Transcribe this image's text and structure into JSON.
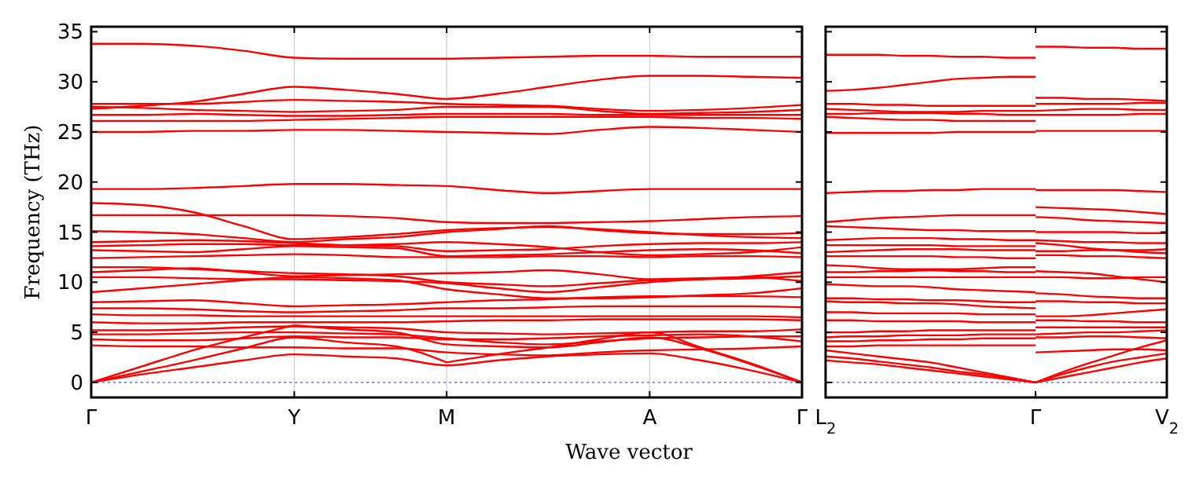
{
  "chart_data": [
    {
      "type": "line",
      "ylabel": "Frequency (THz)",
      "xlabel": "Wave vector",
      "ylim": [
        -1.5,
        35.5
      ],
      "categories": [
        "Γ",
        null,
        null,
        null,
        "Y",
        null,
        null,
        "M",
        null,
        null,
        null,
        "A",
        null,
        null,
        "Γ"
      ],
      "yticks": [
        0,
        5,
        10,
        15,
        20,
        25,
        30,
        35
      ],
      "grid": "x",
      "marker": "none",
      "line_style": "solid",
      "ref_lines": [
        {
          "axis": "y",
          "value": 0,
          "color": "#7f7fff",
          "line_style": "dotted"
        }
      ],
      "series": [
        {
          "color": "#ff0000",
          "values": [
            33.8,
            33.8,
            33.6,
            33.1,
            32.4,
            32.3,
            32.3,
            32.3,
            32.4,
            32.5,
            32.6,
            32.6,
            32.5,
            32.5,
            32.5
          ]
        },
        {
          "color": "#ff0000",
          "values": [
            27.3,
            27.6,
            28.0,
            28.8,
            29.5,
            29.2,
            28.8,
            28.3,
            28.8,
            29.5,
            30.2,
            30.6,
            30.6,
            30.5,
            30.4
          ]
        },
        {
          "color": "#ff0000",
          "values": [
            27.8,
            27.8,
            27.8,
            28.0,
            28.2,
            28.1,
            28.0,
            27.8,
            27.7,
            27.6,
            27.3,
            27.1,
            27.2,
            27.4,
            27.7
          ]
        },
        {
          "color": "#ff0000",
          "values": [
            27.5,
            27.4,
            27.2,
            27.1,
            27.0,
            27.1,
            27.2,
            27.5,
            27.5,
            27.5,
            27.1,
            26.8,
            26.9,
            27.0,
            27.2
          ]
        },
        {
          "color": "#ff0000",
          "values": [
            26.7,
            26.7,
            26.8,
            26.7,
            26.6,
            26.6,
            26.7,
            26.8,
            26.8,
            26.8,
            26.7,
            26.7,
            26.7,
            26.7,
            26.7
          ]
        },
        {
          "color": "#ff0000",
          "values": [
            26.1,
            26.1,
            26.1,
            26.1,
            26.2,
            26.3,
            26.4,
            26.5,
            26.5,
            26.5,
            26.5,
            26.5,
            26.4,
            26.4,
            26.3
          ]
        },
        {
          "color": "#ff0000",
          "values": [
            25.0,
            25.0,
            25.1,
            25.1,
            25.2,
            25.2,
            25.1,
            25.0,
            24.9,
            24.8,
            25.2,
            25.5,
            25.4,
            25.2,
            25.0
          ]
        },
        {
          "color": "#ff0000",
          "values": [
            19.3,
            19.3,
            19.4,
            19.6,
            19.8,
            19.8,
            19.7,
            19.6,
            19.2,
            18.9,
            19.1,
            19.3,
            19.3,
            19.3,
            19.3
          ]
        },
        {
          "color": "#ff0000",
          "values": [
            17.9,
            17.7,
            17.0,
            15.6,
            14.3,
            14.5,
            14.8,
            15.2,
            15.4,
            15.5,
            15.3,
            15.0,
            14.7,
            14.5,
            14.4
          ]
        },
        {
          "color": "#ff0000",
          "values": [
            16.7,
            16.7,
            16.7,
            16.7,
            16.7,
            16.6,
            16.4,
            16.0,
            15.9,
            15.9,
            16.0,
            16.1,
            16.3,
            16.5,
            16.6
          ]
        },
        {
          "color": "#ff0000",
          "values": [
            15.1,
            15.0,
            14.8,
            14.4,
            14.0,
            14.3,
            14.5,
            15.0,
            15.3,
            15.6,
            15.2,
            14.9,
            14.8,
            14.8,
            14.9
          ]
        },
        {
          "color": "#ff0000",
          "values": [
            14.0,
            14.1,
            14.2,
            14.1,
            13.9,
            13.7,
            13.6,
            13.1,
            13.2,
            13.3,
            13.6,
            13.8,
            13.9,
            13.9,
            14.0
          ]
        },
        {
          "color": "#ff0000",
          "values": [
            13.6,
            13.7,
            13.8,
            13.8,
            13.7,
            13.7,
            13.8,
            14.0,
            13.8,
            13.5,
            13.0,
            12.7,
            12.8,
            13.0,
            13.5
          ]
        },
        {
          "color": "#ff0000",
          "values": [
            13.2,
            13.1,
            13.0,
            13.3,
            13.6,
            13.5,
            13.4,
            12.6,
            12.7,
            12.8,
            13.0,
            13.2,
            13.3,
            13.2,
            12.9
          ]
        },
        {
          "color": "#ff0000",
          "values": [
            12.4,
            12.5,
            12.6,
            12.7,
            12.8,
            12.7,
            12.5,
            12.5,
            12.5,
            12.6,
            12.6,
            12.5,
            12.6,
            12.6,
            12.5
          ]
        },
        {
          "color": "#ff0000",
          "values": [
            11.5,
            11.5,
            11.3,
            11.1,
            10.9,
            10.8,
            10.6,
            10.0,
            9.8,
            9.6,
            9.9,
            10.2,
            10.3,
            10.4,
            10.6
          ]
        },
        {
          "color": "#ff0000",
          "values": [
            11.0,
            11.2,
            11.4,
            11.0,
            10.6,
            10.7,
            10.8,
            10.9,
            11.0,
            11.2,
            10.8,
            10.3,
            10.4,
            10.5,
            10.1
          ]
        },
        {
          "color": "#ff0000",
          "values": [
            10.5,
            10.5,
            10.4,
            10.3,
            10.3,
            10.2,
            10.1,
            9.9,
            9.4,
            9.0,
            9.5,
            10.0,
            10.3,
            10.6,
            11.0
          ]
        },
        {
          "color": "#ff0000",
          "values": [
            9.0,
            9.4,
            9.8,
            10.2,
            10.5,
            10.4,
            10.2,
            9.3,
            8.8,
            8.4,
            8.4,
            8.5,
            8.7,
            8.9,
            9.4
          ]
        },
        {
          "color": "#ff0000",
          "values": [
            8.0,
            8.1,
            8.2,
            7.9,
            7.6,
            7.7,
            7.8,
            8.0,
            8.2,
            8.3,
            8.5,
            8.6,
            8.6,
            8.6,
            8.5
          ]
        },
        {
          "color": "#ff0000",
          "values": [
            7.4,
            7.4,
            7.3,
            7.1,
            7.0,
            7.1,
            7.2,
            7.4,
            7.4,
            7.5,
            7.6,
            7.6,
            7.6,
            7.6,
            7.5
          ]
        },
        {
          "color": "#ff0000",
          "values": [
            6.8,
            6.7,
            6.7,
            6.6,
            6.6,
            6.6,
            6.6,
            6.6,
            6.6,
            6.6,
            6.6,
            6.6,
            6.6,
            6.6,
            6.5
          ]
        },
        {
          "color": "#ff0000",
          "values": [
            6.0,
            5.9,
            5.9,
            6.0,
            6.0,
            6.0,
            6.0,
            6.1,
            6.2,
            6.2,
            6.3,
            6.3,
            6.3,
            6.3,
            6.2
          ]
        },
        {
          "color": "#ff0000",
          "values": [
            5.2,
            5.2,
            5.3,
            5.5,
            5.6,
            5.5,
            5.4,
            5.0,
            4.9,
            4.8,
            4.9,
            5.0,
            5.1,
            5.1,
            5.3
          ]
        },
        {
          "color": "#ff0000",
          "values": [
            4.8,
            4.8,
            4.9,
            5.0,
            5.0,
            4.9,
            4.8,
            4.4,
            4.0,
            3.8,
            4.1,
            4.4,
            4.5,
            4.6,
            4.6
          ]
        },
        {
          "color": "#ff0000",
          "values": [
            4.3,
            4.2,
            4.2,
            4.4,
            4.6,
            4.5,
            4.5,
            4.3,
            4.3,
            4.4,
            4.6,
            4.7,
            4.8,
            4.6,
            4.1
          ]
        },
        {
          "color": "#ff0000",
          "values": [
            3.7,
            3.6,
            3.6,
            3.5,
            3.5,
            3.4,
            3.4,
            3.0,
            2.8,
            2.7,
            3.0,
            3.2,
            3.3,
            3.4,
            3.6
          ]
        },
        {
          "color": "#ff0000",
          "values": [
            0,
            1.6,
            3.2,
            4.5,
            5.7,
            null,
            null,
            null,
            null,
            null,
            null,
            null,
            null,
            null,
            null
          ]
        },
        {
          "color": "#ff0000",
          "values": [
            null,
            null,
            null,
            null,
            5.7,
            5.3,
            5.0,
            3.8,
            3.6,
            3.5,
            4.0,
            4.5,
            3.4,
            1.8,
            0
          ]
        },
        {
          "color": "#ff0000",
          "values": [
            0,
            1.1,
            2.2,
            3.4,
            4.5,
            4.0,
            3.6,
            2.0,
            null,
            null,
            null,
            null,
            null,
            null,
            null
          ]
        },
        {
          "color": "#ff0000",
          "values": [
            null,
            null,
            null,
            null,
            null,
            null,
            null,
            2.0,
            2.8,
            3.5,
            4.3,
            5.0,
            3.5,
            1.9,
            0
          ]
        },
        {
          "color": "#ff0000",
          "values": [
            0,
            0.8,
            1.5,
            2.2,
            2.8,
            2.6,
            2.4,
            1.7,
            2.2,
            2.6,
            null,
            null,
            null,
            null,
            null
          ]
        },
        {
          "color": "#ff0000",
          "values": [
            null,
            null,
            null,
            null,
            null,
            null,
            null,
            null,
            null,
            2.6,
            2.8,
            2.9,
            2.2,
            1.2,
            0
          ]
        }
      ]
    },
    {
      "type": "line",
      "ylim": [
        -1.5,
        35.5
      ],
      "categories": [
        "L$_{2}$",
        null,
        null,
        null,
        null,
        null,
        null,
        null,
        "Γ",
        null,
        null,
        null,
        null,
        "V$_{2}$"
      ],
      "yticks": [
        {
          "value": 0,
          "label": null
        },
        {
          "value": 5,
          "label": null
        },
        {
          "value": 10,
          "label": null
        },
        {
          "value": 15,
          "label": null
        },
        {
          "value": 20,
          "label": null
        },
        {
          "value": 25,
          "label": null
        },
        {
          "value": 30,
          "label": null
        },
        {
          "value": 35,
          "label": null
        }
      ],
      "tick_labels": "x",
      "marker": "none",
      "line_style": "solid",
      "ref_lines": [
        {
          "axis": "y",
          "value": 0,
          "color": "#7f7fff",
          "line_style": "dotted"
        }
      ],
      "series": [
        {
          "color": "#ff0000",
          "values": [
            32.7,
            32.7,
            32.7,
            32.6,
            32.6,
            32.5,
            32.5,
            32.4,
            32.4,
            null,
            null,
            null,
            null,
            null
          ]
        },
        {
          "color": "#ff0000",
          "values": [
            29.1,
            29.2,
            29.4,
            29.7,
            30.0,
            30.3,
            30.4,
            30.5,
            30.5,
            null,
            null,
            null,
            null,
            null
          ]
        },
        {
          "color": "#ff0000",
          "values": [
            27.8,
            27.8,
            27.7,
            27.7,
            27.6,
            27.6,
            27.6,
            27.6,
            27.6,
            null,
            null,
            null,
            null,
            null
          ]
        },
        {
          "color": "#ff0000",
          "values": [
            27.3,
            27.2,
            27.1,
            27.0,
            27.0,
            27.0,
            27.1,
            27.1,
            27.1,
            null,
            null,
            null,
            null,
            null
          ]
        },
        {
          "color": "#ff0000",
          "values": [
            26.8,
            26.8,
            26.9,
            26.9,
            26.9,
            26.8,
            26.8,
            26.7,
            26.7,
            null,
            null,
            null,
            null,
            null
          ]
        },
        {
          "color": "#ff0000",
          "values": [
            26.5,
            26.4,
            26.3,
            26.2,
            26.2,
            26.1,
            26.1,
            26.1,
            26.1,
            null,
            null,
            null,
            null,
            null
          ]
        },
        {
          "color": "#ff0000",
          "values": [
            24.9,
            24.9,
            24.9,
            24.9,
            24.9,
            25.0,
            25.0,
            25.0,
            25.0,
            null,
            null,
            null,
            null,
            null
          ]
        },
        {
          "color": "#ff0000",
          "values": [
            18.9,
            19.0,
            19.1,
            19.1,
            19.2,
            19.2,
            19.3,
            19.3,
            19.3,
            null,
            null,
            null,
            null,
            null
          ]
        },
        {
          "color": "#ff0000",
          "values": [
            16.0,
            16.2,
            16.4,
            16.5,
            16.6,
            16.7,
            16.7,
            16.7,
            16.7,
            null,
            null,
            null,
            null,
            null
          ]
        },
        {
          "color": "#ff0000",
          "values": [
            15.6,
            15.5,
            15.4,
            15.3,
            15.2,
            15.2,
            15.1,
            15.1,
            15.1,
            null,
            null,
            null,
            null,
            null
          ]
        },
        {
          "color": "#ff0000",
          "values": [
            14.2,
            14.3,
            14.4,
            14.4,
            14.4,
            14.3,
            14.3,
            14.2,
            14.2,
            null,
            null,
            null,
            null,
            null
          ]
        },
        {
          "color": "#ff0000",
          "values": [
            13.7,
            13.7,
            13.7,
            13.7,
            13.7,
            13.6,
            13.6,
            13.6,
            13.6,
            null,
            null,
            null,
            null,
            null
          ]
        },
        {
          "color": "#ff0000",
          "values": [
            13.0,
            13.1,
            13.2,
            13.3,
            13.3,
            13.3,
            13.2,
            13.2,
            13.2,
            null,
            null,
            null,
            null,
            null
          ]
        },
        {
          "color": "#ff0000",
          "values": [
            12.6,
            12.6,
            12.6,
            12.6,
            12.6,
            12.5,
            12.5,
            12.4,
            12.4,
            null,
            null,
            null,
            null,
            null
          ]
        },
        {
          "color": "#ff0000",
          "values": [
            11.7,
            11.6,
            11.4,
            11.3,
            11.3,
            11.3,
            11.4,
            11.5,
            11.5,
            null,
            null,
            null,
            null,
            null
          ]
        },
        {
          "color": "#ff0000",
          "values": [
            11.0,
            11.0,
            11.1,
            11.1,
            11.2,
            11.1,
            11.1,
            11.0,
            11.0,
            null,
            null,
            null,
            null,
            null
          ]
        },
        {
          "color": "#ff0000",
          "values": [
            10.5,
            10.5,
            10.5,
            10.5,
            10.5,
            10.5,
            10.5,
            10.5,
            10.5,
            null,
            null,
            null,
            null,
            null
          ]
        },
        {
          "color": "#ff0000",
          "values": [
            9.8,
            9.7,
            9.6,
            9.6,
            9.5,
            9.3,
            9.2,
            9.1,
            9.0,
            null,
            null,
            null,
            null,
            null
          ]
        },
        {
          "color": "#ff0000",
          "values": [
            8.4,
            8.4,
            8.3,
            8.3,
            8.2,
            8.2,
            8.1,
            8.0,
            8.0,
            null,
            null,
            null,
            null,
            null
          ]
        },
        {
          "color": "#ff0000",
          "values": [
            8.1,
            8.0,
            8.0,
            7.9,
            7.9,
            7.8,
            7.6,
            7.5,
            7.4,
            null,
            null,
            null,
            null,
            null
          ]
        },
        {
          "color": "#ff0000",
          "values": [
            7.0,
            7.0,
            6.9,
            6.9,
            6.9,
            6.9,
            6.8,
            6.8,
            6.8,
            null,
            null,
            null,
            null,
            null
          ]
        },
        {
          "color": "#ff0000",
          "values": [
            6.2,
            6.2,
            6.1,
            6.1,
            6.1,
            6.1,
            6.0,
            6.0,
            6.0,
            null,
            null,
            null,
            null,
            null
          ]
        },
        {
          "color": "#ff0000",
          "values": [
            5.0,
            5.0,
            5.1,
            5.1,
            5.2,
            5.2,
            5.2,
            5.2,
            5.2,
            null,
            null,
            null,
            null,
            null
          ]
        },
        {
          "color": "#ff0000",
          "values": [
            4.5,
            4.6,
            4.6,
            4.7,
            4.7,
            4.7,
            4.8,
            4.8,
            4.8,
            null,
            null,
            null,
            null,
            null
          ]
        },
        {
          "color": "#ff0000",
          "values": [
            4.1,
            4.1,
            4.2,
            4.2,
            4.3,
            4.3,
            4.4,
            4.4,
            4.4,
            null,
            null,
            null,
            null,
            null
          ]
        },
        {
          "color": "#ff0000",
          "values": [
            3.6,
            3.6,
            3.7,
            3.7,
            3.7,
            3.7,
            3.7,
            3.7,
            3.7,
            null,
            null,
            null,
            null,
            null
          ]
        },
        {
          "color": "#ff0000",
          "values": [
            3.2,
            2.9,
            2.6,
            2.3,
            2.0,
            1.5,
            1.0,
            0.5,
            0,
            null,
            null,
            null,
            null,
            null
          ]
        },
        {
          "color": "#ff0000",
          "values": [
            2.6,
            2.4,
            2.1,
            1.8,
            1.5,
            1.1,
            0.8,
            0.4,
            0,
            null,
            null,
            null,
            null,
            null
          ]
        },
        {
          "color": "#ff0000",
          "values": [
            2.2,
            2.0,
            1.8,
            1.5,
            1.2,
            0.9,
            0.6,
            0.3,
            0,
            null,
            null,
            null,
            null,
            null
          ]
        },
        {
          "color": "#ff0000",
          "values": [
            null,
            null,
            null,
            null,
            null,
            null,
            null,
            null,
            33.5,
            33.5,
            33.4,
            33.4,
            33.3,
            33.3
          ]
        },
        {
          "color": "#ff0000",
          "values": [
            null,
            null,
            null,
            null,
            null,
            null,
            null,
            null,
            28.4,
            28.4,
            28.3,
            28.3,
            28.2,
            28.1
          ]
        },
        {
          "color": "#ff0000",
          "values": [
            null,
            null,
            null,
            null,
            null,
            null,
            null,
            null,
            27.8,
            27.8,
            27.8,
            27.8,
            27.9,
            27.9
          ]
        },
        {
          "color": "#ff0000",
          "values": [
            null,
            null,
            null,
            null,
            null,
            null,
            null,
            null,
            27.1,
            27.2,
            27.3,
            27.3,
            27.2,
            27.2
          ]
        },
        {
          "color": "#ff0000",
          "values": [
            null,
            null,
            null,
            null,
            null,
            null,
            null,
            null,
            26.7,
            26.7,
            26.7,
            26.7,
            26.8,
            26.8
          ]
        },
        {
          "color": "#ff0000",
          "values": [
            null,
            null,
            null,
            null,
            null,
            null,
            null,
            null,
            25.1,
            25.1,
            25.1,
            25.1,
            25.1,
            25.1
          ]
        },
        {
          "color": "#ff0000",
          "values": [
            null,
            null,
            null,
            null,
            null,
            null,
            null,
            null,
            19.2,
            19.2,
            19.2,
            19.2,
            19.1,
            19.0
          ]
        },
        {
          "color": "#ff0000",
          "values": [
            null,
            null,
            null,
            null,
            null,
            null,
            null,
            null,
            17.5,
            17.4,
            17.3,
            17.2,
            17.0,
            16.8
          ]
        },
        {
          "color": "#ff0000",
          "values": [
            null,
            null,
            null,
            null,
            null,
            null,
            null,
            null,
            16.5,
            16.4,
            16.2,
            16.1,
            16.0,
            15.9
          ]
        },
        {
          "color": "#ff0000",
          "values": [
            null,
            null,
            null,
            null,
            null,
            null,
            null,
            null,
            15.0,
            15.0,
            15.0,
            15.0,
            14.9,
            14.9
          ]
        },
        {
          "color": "#ff0000",
          "values": [
            null,
            null,
            null,
            null,
            null,
            null,
            null,
            null,
            14.2,
            14.1,
            14.0,
            14.0,
            13.9,
            13.9
          ]
        },
        {
          "color": "#ff0000",
          "values": [
            null,
            null,
            null,
            null,
            null,
            null,
            null,
            null,
            13.9,
            13.7,
            13.4,
            13.2,
            13.0,
            12.9
          ]
        },
        {
          "color": "#ff0000",
          "values": [
            null,
            null,
            null,
            null,
            null,
            null,
            null,
            null,
            13.1,
            13.1,
            13.2,
            13.2,
            13.2,
            13.3
          ]
        },
        {
          "color": "#ff0000",
          "values": [
            null,
            null,
            null,
            null,
            null,
            null,
            null,
            null,
            12.7,
            12.7,
            12.6,
            12.6,
            12.5,
            12.4
          ]
        },
        {
          "color": "#ff0000",
          "values": [
            null,
            null,
            null,
            null,
            null,
            null,
            null,
            null,
            11.1,
            11.0,
            10.9,
            10.6,
            10.3,
            10.0
          ]
        },
        {
          "color": "#ff0000",
          "values": [
            null,
            null,
            null,
            null,
            null,
            null,
            null,
            null,
            10.5,
            10.5,
            10.4,
            10.4,
            10.5,
            10.5
          ]
        },
        {
          "color": "#ff0000",
          "values": [
            null,
            null,
            null,
            null,
            null,
            null,
            null,
            null,
            8.9,
            8.8,
            8.6,
            8.5,
            8.4,
            8.4
          ]
        },
        {
          "color": "#ff0000",
          "values": [
            null,
            null,
            null,
            null,
            null,
            null,
            null,
            null,
            8.1,
            8.1,
            8.0,
            8.0,
            7.9,
            7.9
          ]
        },
        {
          "color": "#ff0000",
          "values": [
            null,
            null,
            null,
            null,
            null,
            null,
            null,
            null,
            6.6,
            6.6,
            6.7,
            6.9,
            7.1,
            7.3
          ]
        },
        {
          "color": "#ff0000",
          "values": [
            null,
            null,
            null,
            null,
            null,
            null,
            null,
            null,
            6.2,
            6.2,
            6.1,
            6.1,
            6.0,
            6.0
          ]
        },
        {
          "color": "#ff0000",
          "values": [
            null,
            null,
            null,
            null,
            null,
            null,
            null,
            null,
            5.5,
            5.5,
            5.5,
            5.5,
            5.5,
            5.5
          ]
        },
        {
          "color": "#ff0000",
          "values": [
            null,
            null,
            null,
            null,
            null,
            null,
            null,
            null,
            4.8,
            4.9,
            5.0,
            5.0,
            5.1,
            5.2
          ]
        },
        {
          "color": "#ff0000",
          "values": [
            null,
            null,
            null,
            null,
            null,
            null,
            null,
            null,
            4.5,
            4.5,
            4.6,
            4.6,
            4.5,
            4.4
          ]
        },
        {
          "color": "#ff0000",
          "values": [
            null,
            null,
            null,
            null,
            null,
            null,
            null,
            null,
            3.0,
            3.1,
            3.2,
            3.3,
            3.3,
            3.2
          ]
        },
        {
          "color": "#ff0000",
          "values": [
            null,
            null,
            null,
            null,
            null,
            null,
            null,
            null,
            0,
            1.0,
            1.9,
            2.7,
            3.5,
            4.2
          ]
        },
        {
          "color": "#ff0000",
          "values": [
            null,
            null,
            null,
            null,
            null,
            null,
            null,
            null,
            0,
            0.8,
            1.5,
            2.1,
            2.5,
            2.9
          ]
        },
        {
          "color": "#ff0000",
          "values": [
            null,
            null,
            null,
            null,
            null,
            null,
            null,
            null,
            0,
            0.5,
            1.0,
            1.5,
            2.0,
            2.4
          ]
        }
      ]
    }
  ]
}
